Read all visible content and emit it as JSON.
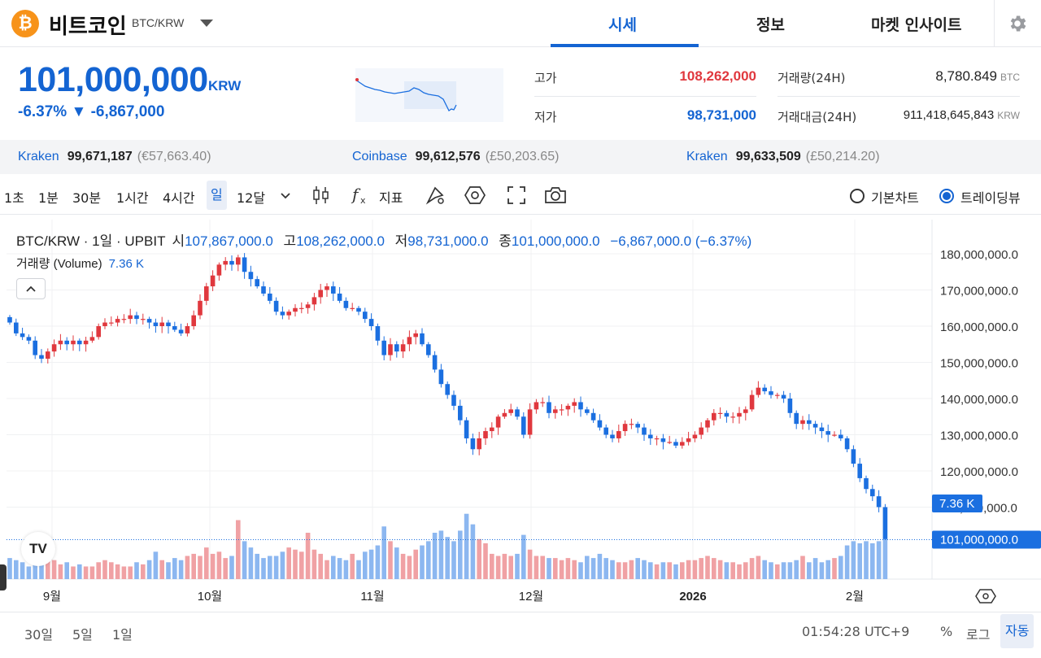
{
  "header": {
    "coin_symbol": "₿",
    "coin_name": "비트코인",
    "pair": "BTC/KRW",
    "tabs": [
      {
        "label": "시세",
        "active": true
      },
      {
        "label": "정보",
        "active": false
      },
      {
        "label": "마켓 인사이트",
        "active": false
      }
    ],
    "settings_icon": "gear-icon"
  },
  "summary": {
    "price": "101,000,000",
    "unit": "KRW",
    "change": "-6.37% ▼ -6,867,000",
    "high_label": "고가",
    "high_value": "108,262,000",
    "low_label": "저가",
    "low_value": "98,731,000",
    "volume_label": "거래량(24H)",
    "volume_value": "8,780.849",
    "volume_unit": "BTC",
    "turnover_label": "거래대금(24H)",
    "turnover_value": "911,418,645,843",
    "turnover_unit": "KRW"
  },
  "exchanges": [
    {
      "name": "Kraken",
      "value": "99,671,187",
      "fiat": "(€57,663.40)"
    },
    {
      "name": "Coinbase",
      "value": "99,612,576",
      "fiat": "(£50,203.65)"
    },
    {
      "name": "Kraken",
      "value": "99,633,509",
      "fiat": "(£50,214.20)"
    }
  ],
  "toolbar": {
    "intervals": [
      "1초",
      "1분",
      "30분",
      "1시간",
      "4시간",
      "일",
      "12달"
    ],
    "active_interval": "일",
    "indicator_label": "지표",
    "chart_mode_basic": "기본차트",
    "chart_mode_trading": "트레이딩뷰",
    "active_mode": "트레이딩뷰"
  },
  "legend": {
    "title": "BTC/KRW · 1일 · UPBIT",
    "open_label": "시",
    "open": "107,867,000.0",
    "high_label": "고",
    "high": "108,262,000.0",
    "low_label": "저",
    "low": "98,731,000.0",
    "close_label": "종",
    "close": "101,000,000.0",
    "change": "−6,867,000.0 (−6.37%)",
    "volume_label": "거래량 (Volume)",
    "volume": "7.36 K",
    "tv_logo": "TV"
  },
  "chart_data": {
    "type": "candlestick",
    "y_ticks": [
      "180,000,000.0",
      "170,000,000.0",
      "160,000,000.0",
      "150,000,000.0",
      "140,000,000.0",
      "130,000,000.0",
      "120,000,000.0",
      "110,000,000.0"
    ],
    "ylim": [
      100000000,
      180000000
    ],
    "x_ticks": [
      {
        "label": "9월",
        "bold": false
      },
      {
        "label": "10월",
        "bold": false
      },
      {
        "label": "11월",
        "bold": false
      },
      {
        "label": "12월",
        "bold": false
      },
      {
        "label": "2026",
        "bold": true
      },
      {
        "label": "2월",
        "bold": false
      }
    ],
    "last_price_label": "101,000,000.0",
    "last_volume_label": "7.36 K",
    "close_series": [
      161,
      158,
      157,
      156,
      152,
      151,
      153,
      155,
      156,
      155,
      156,
      155,
      156,
      157,
      160,
      161,
      161,
      162,
      162,
      163,
      162,
      162,
      161,
      160,
      161,
      160,
      159,
      158,
      160,
      163,
      167,
      171,
      174,
      177,
      178,
      177,
      179,
      175,
      173,
      171,
      169,
      167,
      164,
      163,
      164,
      165,
      165,
      166,
      168,
      170,
      171,
      169,
      167,
      165,
      165,
      164,
      162,
      160,
      156,
      152,
      155,
      153,
      155,
      157,
      158,
      155,
      152,
      148,
      144,
      141,
      138,
      134,
      129,
      126,
      129,
      131,
      132,
      135,
      136,
      137,
      135,
      130,
      137,
      139,
      139,
      136,
      137,
      137,
      138,
      139,
      137,
      136,
      134,
      132,
      130,
      129,
      131,
      133,
      133,
      132,
      130,
      129,
      129,
      128,
      128,
      127,
      128,
      129,
      130,
      132,
      134,
      136,
      136,
      135,
      135,
      136,
      137,
      141,
      143,
      142,
      141,
      141,
      140,
      136,
      133,
      134,
      133,
      132,
      131,
      130,
      130,
      129,
      126,
      122,
      118,
      115,
      113,
      110,
      101
    ],
    "volume_series": [
      0.5,
      0.45,
      0.4,
      0.3,
      0.55,
      0.5,
      0.5,
      0.45,
      0.35,
      0.4,
      0.3,
      0.35,
      0.3,
      0.3,
      0.4,
      0.45,
      0.4,
      0.35,
      0.3,
      0.3,
      0.4,
      0.35,
      0.45,
      0.65,
      0.45,
      0.4,
      0.5,
      0.45,
      0.55,
      0.6,
      0.55,
      0.75,
      0.6,
      0.65,
      0.5,
      0.55,
      1.4,
      0.9,
      0.75,
      0.6,
      0.5,
      0.55,
      0.55,
      0.65,
      0.75,
      0.7,
      0.65,
      1.1,
      0.7,
      0.6,
      0.45,
      0.55,
      0.5,
      0.45,
      0.6,
      0.45,
      0.65,
      0.7,
      0.8,
      1.25,
      0.9,
      0.75,
      0.6,
      0.55,
      0.7,
      0.8,
      0.9,
      1.1,
      1.15,
      1.0,
      0.9,
      1.15,
      1.55,
      1.3,
      0.95,
      0.85,
      0.6,
      0.55,
      0.6,
      0.55,
      0.6,
      1.05,
      0.7,
      0.55,
      0.55,
      0.5,
      0.5,
      0.45,
      0.5,
      0.45,
      0.4,
      0.55,
      0.5,
      0.6,
      0.5,
      0.45,
      0.4,
      0.4,
      0.45,
      0.5,
      0.45,
      0.4,
      0.35,
      0.4,
      0.4,
      0.35,
      0.4,
      0.45,
      0.45,
      0.5,
      0.55,
      0.5,
      0.45,
      0.4,
      0.4,
      0.35,
      0.4,
      0.5,
      0.55,
      0.45,
      0.4,
      0.35,
      0.4,
      0.4,
      0.45,
      0.55,
      0.4,
      0.5,
      0.4,
      0.45,
      0.5,
      0.55,
      0.8,
      0.9,
      0.85,
      0.9,
      0.85,
      0.9,
      0.95
    ]
  },
  "footer": {
    "ranges": [
      "30일",
      "5일",
      "1일"
    ],
    "clock": "01:54:28 UTC+9",
    "percent": "%",
    "log": "로그",
    "auto": "자동"
  },
  "colors": {
    "accent": "#1464d2",
    "up": "#e0383e",
    "down": "#1b6fe0",
    "up_volume": "#f0a1a4",
    "down_volume": "#8cb7f0"
  }
}
